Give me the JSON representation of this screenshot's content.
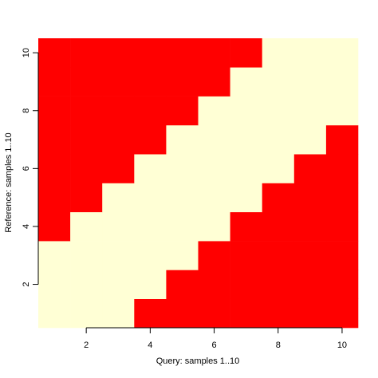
{
  "chart_data": {
    "type": "heatmap",
    "x_label": "Query: samples 1..10",
    "y_label": "Reference: samples 1..10",
    "x": [
      1,
      2,
      3,
      4,
      5,
      6,
      7,
      8,
      9,
      10
    ],
    "y": [
      1,
      2,
      3,
      4,
      5,
      6,
      7,
      8,
      9,
      10
    ],
    "z": [
      [
        0,
        0,
        0,
        1,
        1,
        1,
        1,
        1,
        1,
        1
      ],
      [
        0,
        0,
        0,
        0,
        1,
        1,
        1,
        1,
        1,
        1
      ],
      [
        0,
        0,
        0,
        0,
        0,
        1,
        1,
        1,
        1,
        1
      ],
      [
        1,
        0,
        0,
        0,
        0,
        0,
        1,
        1,
        1,
        1
      ],
      [
        1,
        1,
        0,
        0,
        0,
        0,
        0,
        1,
        1,
        1
      ],
      [
        1,
        1,
        1,
        0,
        0,
        0,
        0,
        0,
        1,
        1
      ],
      [
        1,
        1,
        1,
        1,
        0,
        0,
        0,
        0,
        0,
        1
      ],
      [
        1,
        1,
        1,
        1,
        1,
        0,
        0,
        0,
        0,
        0
      ],
      [
        1,
        1,
        1,
        1,
        1,
        1,
        0,
        0,
        0,
        0
      ],
      [
        1,
        1,
        1,
        1,
        1,
        1,
        1,
        0,
        0,
        0
      ]
    ],
    "colors": [
      "#FFFFD5",
      "#FF0000"
    ],
    "xlim": [
      0.5,
      10.5
    ],
    "ylim": [
      0.5,
      10.5
    ],
    "xticks": [
      2,
      4,
      6,
      8,
      10
    ],
    "yticks": [
      2,
      4,
      6,
      8,
      10
    ]
  }
}
